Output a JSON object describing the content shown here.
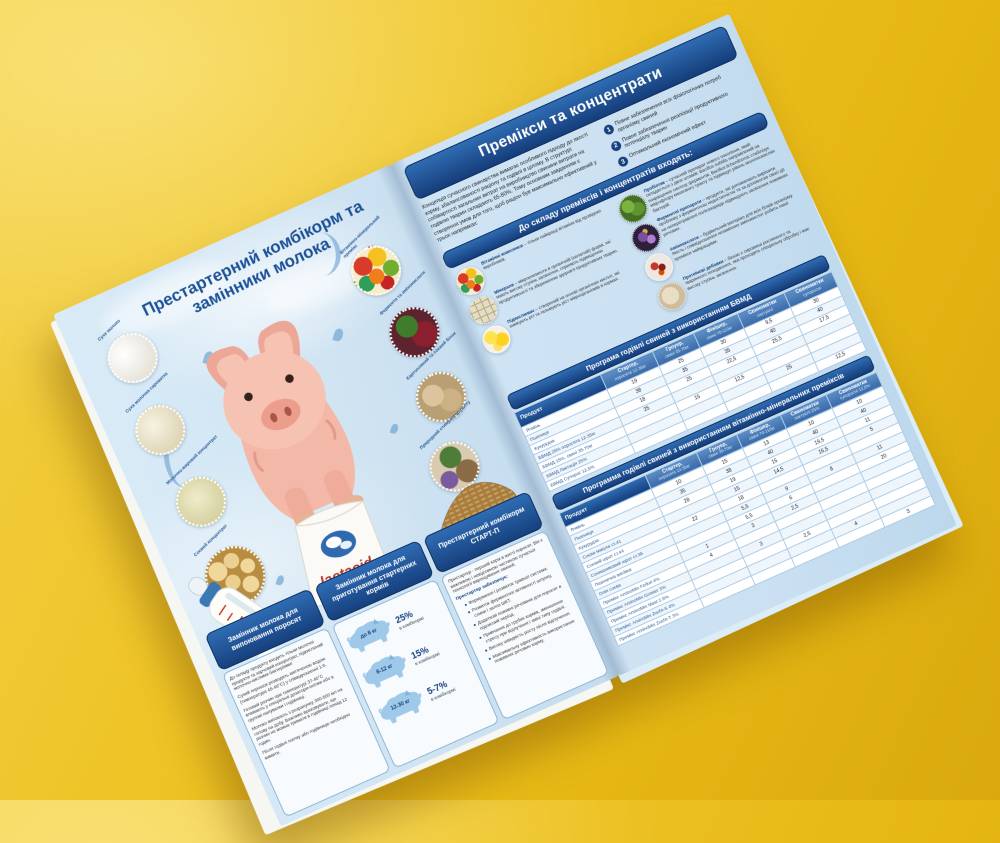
{
  "colors": {
    "background": "#e9bd18",
    "accent_dark_blue": "#16407e",
    "accent_mid_blue": "#2f6cb3",
    "page_blue": "#cfe3f2",
    "brand_red": "#c0392b"
  },
  "left_page": {
    "title_lines": [
      "Престартерний комбікорм та",
      "замінники молока"
    ],
    "bag_brand": "lactacid",
    "ingredient_circles_left": [
      {
        "label": "Сухе молоко",
        "icon": "dry-milk"
      },
      {
        "label": "Суха молочна сироватка",
        "icon": "whey-powder"
      },
      {
        "label": "Молочно-жировий концентрат",
        "icon": "milk-fat-concentrate"
      },
      {
        "label": "Соєвий концентрат",
        "icon": "soybeans"
      }
    ],
    "ingredient_circles_right": [
      {
        "label": "Вітамінно-мінеральний премікс",
        "icon": "vitamin-balls"
      },
      {
        "label": "Ферменти та амінокислоти",
        "icon": "enzymes"
      },
      {
        "label": "Картопляний та соєвий білок",
        "icon": "potato-soy-protein"
      },
      {
        "label": "Природний стимулятор росту",
        "icon": "herbs"
      }
    ],
    "panels": [
      {
        "header": "Замінник молока для випоювання поросят",
        "paragraphs": [
          "До складу продукту входять тільки молочні продукти та харчовий концентрат, підкислений молочно-кислими бактеріями!",
          "Сухий порошок розводять кип'яченою водою (температура 45-48°С) у співвідношенні 1:6.",
          "Готовий розчин при температурі 37-40°С вливають у спеціальні дозатори-поїлки або в групові напувалки і годівниці.",
          "Молоко випоюють з розрахунку 300-500 мл на голову на добу. Важливо враховувати, що розчин не можна тримати в годівниці понад 12 годин.",
          "Після годівлі поїлку або годівницю необхідно вимити."
        ]
      },
      {
        "header": "Замінник молока для приготування стартерних кормів",
        "rows": [
          {
            "weight": "до 8 кг",
            "percent": "25%",
            "unit": "в комбікормі"
          },
          {
            "weight": "8-12 кг",
            "percent": "15%",
            "unit": "в комбікормі"
          },
          {
            "weight": "12-30 кг",
            "percent": "5-7%",
            "unit": "в комбікормі"
          }
        ]
      },
      {
        "header": "Престартерний комбікорм СТАРТ-П",
        "intro": "Престартер - перший корм в житті поросят. Він є важливою і невід'ємною частиною сучасної технології вирощування свиней.",
        "subhead": "Престартер забезпечує:",
        "bullets": [
          "Формування і розвиток травної системи.",
          "Розвиток ферментної активності шлунку, слини і залоз ШКТ.",
          "Додаткові поживні речовини для поросят в підсисний період.",
          "Привчання до грубих кормів, зменшення стресу при відлученні і зміні типу годівлі.",
          "Високу швидкість росту після відлучення.",
          "Максимальну ефективність використання поживних речовин корму."
        ]
      }
    ]
  },
  "right_page": {
    "title": "Премікси та концентрати",
    "intro": "Концепція сучасного свинарства вимагає особливого підходу до якості корму, збалансованості раціону та годівлі в цілому. В структурі собівартості загальних витрат на виробництво свинини витрати на годівлю тварин складають 65-80%. Тому основним завданням є створення умов для того, щоб раціон був максимально ефективний у трьох напрямках:",
    "goals": [
      {
        "num": "1",
        "text": "Повне забезпечення всіх фізіологічних потреб організму свиней"
      },
      {
        "num": "2",
        "text": "Повне забезпечення реалізації продуктивного потенціалу тварин"
      },
      {
        "num": "3",
        "text": "Оптимальний економічний ефект"
      }
    ],
    "composition_heading": "До складу преміксів і концентратів входять:",
    "ingredients": [
      {
        "name": "Вітамінні комплекси",
        "desc": "– тільки найкращі вітаміни від провідних виробників.",
        "icon": "vitamin-balls"
      },
      {
        "name": "Мінерали",
        "desc": "– мікроелементи в органічній (хелатній) формі, які мають високу ступінь засвоєння, сприяють підвищенню продуктивності та збереженню здоров'я продуктивних тварин.",
        "icon": "periodic-table"
      },
      {
        "name": "Підкислювач",
        "desc": "– створений на основі органічних кислот, які знижують pH та гальмують ріст мікроорганізмів в кормах.",
        "icon": "lemons"
      },
      {
        "name": "Пробіотик",
        "desc": "– сучасний препарат нового покоління, який складається з двох штамів: Bacillus subtilis направлений на покращення синтезу ферментів, Bacillus licheniformis стабілізує мікрофлору кишкового тракту та підвищує рівень молочнокислих бактерій.",
        "icon": "green-beans"
      },
      {
        "name": "Ферментні препарати",
        "desc": "– продукти, які допомагають вирішити проблему з ферментною недостатністю та за допомогою своєї дії на неперетравлені полісахариди підвищують засвоєння поживних речовин.",
        "icon": "purple-flowers"
      },
      {
        "name": "Амінокислоти",
        "desc": "– будівельний матеріал для всіх білків організму. Якість і співвідношення незамінних амінокислот робить наші премікси найкращими.",
        "icon": "molecules"
      },
      {
        "name": "Протеїнові добавки",
        "desc": "– базою є сировина рослинного та тваринного походження, яка проходить спеціальну обробку і має високу ступінь засвоєння.",
        "icon": "protein-powder"
      }
    ],
    "table1": {
      "title": "Програма годівлі свиней з використанням БВМД",
      "columns": [
        {
          "name": "Продукт",
          "sub": ""
        },
        {
          "name": "Стартер,",
          "sub": "поросята 12-35кг"
        },
        {
          "name": "Гроуер,",
          "sub": "свині 35-70кг"
        },
        {
          "name": "Фінішер,",
          "sub": "свині 70-110кг"
        },
        {
          "name": "Свиноматки",
          "sub": "лактуючі"
        },
        {
          "name": "Свиноматки",
          "sub": "супоросні"
        }
      ],
      "rows": [
        {
          "product": "Ячмінь",
          "values": [
            "19",
            "25",
            "30",
            "9,5",
            "30"
          ]
        },
        {
          "product": "Пшениця",
          "values": [
            "38",
            "35",
            "35",
            "40",
            "40"
          ]
        },
        {
          "product": "Кукурудза",
          "values": [
            "18",
            "25",
            "22,5",
            "25,5",
            "17,5"
          ]
        },
        {
          "product": "БВМД 25% поросята 12-35кг",
          "values": [
            "25",
            "",
            "",
            "",
            ""
          ]
        },
        {
          "product": "БВМД 15%, свині 35-70кг",
          "values": [
            "",
            "15",
            "12,5",
            "",
            ""
          ]
        },
        {
          "product": "БВМД Лактація 25%",
          "values": [
            "",
            "",
            "",
            "25",
            ""
          ]
        },
        {
          "product": "БВМД Супорос 12,5%",
          "values": [
            "",
            "",
            "",
            "",
            "12,5"
          ]
        }
      ]
    },
    "table2": {
      "title": "Программа годівлі свиней з використанням вітамінно-мінеральних преміксів",
      "columns": [
        {
          "name": "Продукт",
          "sub": ""
        },
        {
          "name": "Стартер,",
          "sub": "поросята 12-35кг"
        },
        {
          "name": "Гроуер,",
          "sub": "свині 35-70кг"
        },
        {
          "name": "Фінішер,",
          "sub": "свині 70-110кг"
        },
        {
          "name": "Свиноматки",
          "sub": "лактуючі 25%"
        },
        {
          "name": "Свиноматки",
          "sub": "супоросні 12,5%"
        }
      ],
      "rows": [
        {
          "product": "Ячмінь",
          "values": [
            "10",
            "15",
            "13",
            "10",
            "10"
          ]
        },
        {
          "product": "Пшениця",
          "values": [
            "35",
            "38",
            "40",
            "40",
            "40"
          ]
        },
        {
          "product": "Кукурудза",
          "values": [
            "28",
            "19",
            "15",
            "19,5",
            "11"
          ]
        },
        {
          "product": "Соєва макуха ст.41",
          "values": [
            "",
            "15",
            "14,5",
            "16,5",
            "5"
          ]
        },
        {
          "product": "Соєвий шрот ст.44",
          "values": [
            "22",
            "18",
            "",
            "",
            ""
          ]
        },
        {
          "product": "Соняшниковий шрот ст.36",
          "values": [
            "",
            "5,5",
            "9",
            "8",
            "11"
          ]
        },
        {
          "product": "Пшенична висівка",
          "values": [
            "",
            "5,5",
            "6",
            "",
            "20"
          ]
        },
        {
          "product": "Олія соєва",
          "values": [
            "1",
            "3",
            "2,5",
            "",
            ""
          ]
        },
        {
          "product": "Премікс AminoMix Ferkel 4%",
          "values": [
            "4",
            "",
            "",
            "",
            ""
          ]
        },
        {
          "product": "Премікс AminoMix Grower 3%",
          "values": [
            "",
            "3",
            "",
            "",
            ""
          ]
        },
        {
          "product": "Премікс AminoMix Mast 2.5%",
          "values": [
            "",
            "",
            "2,5",
            "",
            ""
          ]
        },
        {
          "product": "Премікс AminoMix Zucht-S 4%",
          "values": [
            "",
            "",
            "",
            "4",
            ""
          ]
        },
        {
          "product": "Премікс AminoMix Zucht-T 3%",
          "values": [
            "",
            "",
            "",
            "",
            "3"
          ]
        }
      ]
    }
  }
}
